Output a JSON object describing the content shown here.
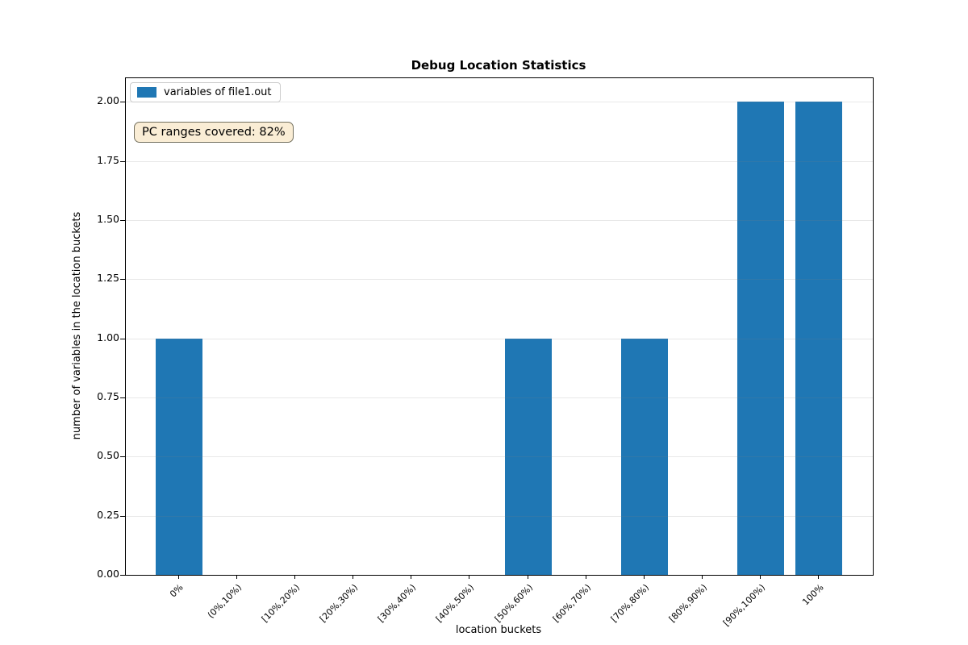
{
  "figure": {
    "title": "Debug Location Statistics",
    "xlabel": "location buckets",
    "ylabel": "number of variables in the location buckets",
    "legend": {
      "label": "variables of file1.out",
      "swatch_color": "#1f77b4"
    },
    "annotation": {
      "text": "PC ranges covered: 82%",
      "bg_color": "#f5deb3",
      "border_color": "#73705f"
    }
  },
  "chart_data": {
    "type": "bar",
    "title": "Debug Location Statistics",
    "xlabel": "location buckets",
    "ylabel": "number of variables in the location buckets",
    "categories": [
      "0%",
      "(0%,10%)",
      "[10%,20%)",
      "[20%,30%)",
      "[30%,40%)",
      "[40%,50%)",
      "[50%,60%)",
      "[60%,70%)",
      "[70%,80%)",
      "[80%,90%)",
      "[90%,100%)",
      "100%"
    ],
    "values": [
      1,
      0,
      0,
      0,
      0,
      0,
      1,
      0,
      1,
      0,
      2,
      2
    ],
    "series_name": "variables of file1.out",
    "bar_color": "#1f77b4",
    "ylim": [
      0,
      2.1
    ],
    "yticks": [
      0.0,
      0.25,
      0.5,
      0.75,
      1.0,
      1.25,
      1.5,
      1.75,
      2.0
    ],
    "ytick_labels": [
      "0.00",
      "0.25",
      "0.50",
      "0.75",
      "1.00",
      "1.25",
      "1.50",
      "1.75",
      "2.00"
    ],
    "x_tick_rotation_deg": 45,
    "grid": true,
    "grid_axis": "y",
    "legend_position": "upper left",
    "annotation": "PC ranges covered: 82%"
  }
}
